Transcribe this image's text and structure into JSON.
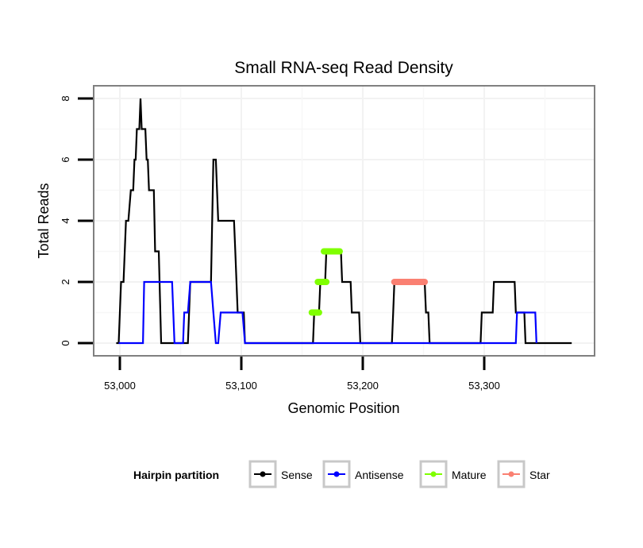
{
  "chart_data": {
    "type": "line",
    "title": "Small RNA-seq Read Density",
    "xlabel": "Genomic Position",
    "ylabel": "Total Reads",
    "xlim": [
      52978,
      53392
    ],
    "ylim": [
      -0.4,
      8.4
    ],
    "xticks": [
      53000,
      53100,
      53200,
      53300
    ],
    "xtick_labels": [
      "53,000",
      "53,100",
      "53,200",
      "53,300"
    ],
    "yticks": [
      0,
      2,
      4,
      6,
      8
    ],
    "ytick_labels": [
      "0",
      "2",
      "4",
      "6",
      "8"
    ],
    "grid": true,
    "legend": {
      "title": "Hairpin partition",
      "placement": "bottom",
      "entries": [
        {
          "name": "Sense",
          "color": "#000000"
        },
        {
          "name": "Antisense",
          "color": "#0000FF"
        },
        {
          "name": "Mature",
          "color": "#7FFF00"
        },
        {
          "name": "Star",
          "color": "#FA8072"
        }
      ]
    },
    "series": [
      {
        "name": "Sense",
        "color": "#000000",
        "style": "line",
        "points": [
          [
            52997,
            0
          ],
          [
            52999,
            0
          ],
          [
            53001,
            2
          ],
          [
            53003,
            2
          ],
          [
            53005,
            4
          ],
          [
            53007,
            4
          ],
          [
            53009,
            5
          ],
          [
            53011,
            5
          ],
          [
            53012,
            6
          ],
          [
            53013,
            6
          ],
          [
            53014,
            7
          ],
          [
            53016,
            7
          ],
          [
            53017,
            8
          ],
          [
            53018,
            7
          ],
          [
            53021,
            7
          ],
          [
            53022,
            6
          ],
          [
            53023,
            6
          ],
          [
            53024,
            5
          ],
          [
            53028,
            5
          ],
          [
            53029,
            3
          ],
          [
            53032,
            3
          ],
          [
            53034,
            0
          ],
          [
            53056,
            0
          ],
          [
            53058,
            2
          ],
          [
            53075,
            2
          ],
          [
            53076,
            4
          ],
          [
            53077,
            6
          ],
          [
            53079,
            6
          ],
          [
            53081,
            4
          ],
          [
            53094,
            4
          ],
          [
            53095,
            3
          ],
          [
            53097,
            1
          ],
          [
            53102,
            1
          ],
          [
            53103,
            0
          ],
          [
            53159,
            0
          ],
          [
            53160,
            1
          ],
          [
            53164,
            1
          ],
          [
            53165,
            2
          ],
          [
            53169,
            2
          ],
          [
            53170,
            3
          ],
          [
            53182,
            3
          ],
          [
            53183,
            2
          ],
          [
            53190,
            2
          ],
          [
            53191,
            1
          ],
          [
            53197,
            1
          ],
          [
            53198,
            0
          ],
          [
            53224,
            0
          ],
          [
            53225,
            1
          ],
          [
            53226,
            2
          ],
          [
            53251,
            2
          ],
          [
            53252,
            1
          ],
          [
            53254,
            1
          ],
          [
            53255,
            0
          ],
          [
            53297,
            0
          ],
          [
            53298,
            1
          ],
          [
            53307,
            1
          ],
          [
            53308,
            2
          ],
          [
            53325,
            2
          ],
          [
            53326,
            1
          ],
          [
            53333,
            1
          ],
          [
            53334,
            0
          ],
          [
            53372,
            0
          ]
        ]
      },
      {
        "name": "Antisense",
        "color": "#0000FF",
        "style": "line",
        "points": [
          [
            52999,
            0
          ],
          [
            53019,
            0
          ],
          [
            53020,
            2
          ],
          [
            53043,
            2
          ],
          [
            53045,
            0
          ],
          [
            53052,
            0
          ],
          [
            53053,
            1
          ],
          [
            53056,
            1
          ],
          [
            53058,
            2
          ],
          [
            53075,
            2
          ],
          [
            53077,
            1
          ],
          [
            53079,
            0
          ],
          [
            53081,
            0
          ],
          [
            53083,
            1
          ],
          [
            53101,
            1
          ],
          [
            53103,
            0
          ],
          [
            53326,
            0
          ],
          [
            53327,
            1
          ],
          [
            53342,
            1
          ],
          [
            53343,
            0
          ]
        ]
      },
      {
        "name": "Mature",
        "color": "#7FFF00",
        "style": "segment",
        "segments": [
          [
            53158,
            53164,
            1
          ],
          [
            53163,
            53170,
            2
          ],
          [
            53168,
            53181,
            3
          ]
        ]
      },
      {
        "name": "Star",
        "color": "#FA8072",
        "style": "segment",
        "segments": [
          [
            53226,
            53251,
            2
          ]
        ]
      }
    ]
  }
}
